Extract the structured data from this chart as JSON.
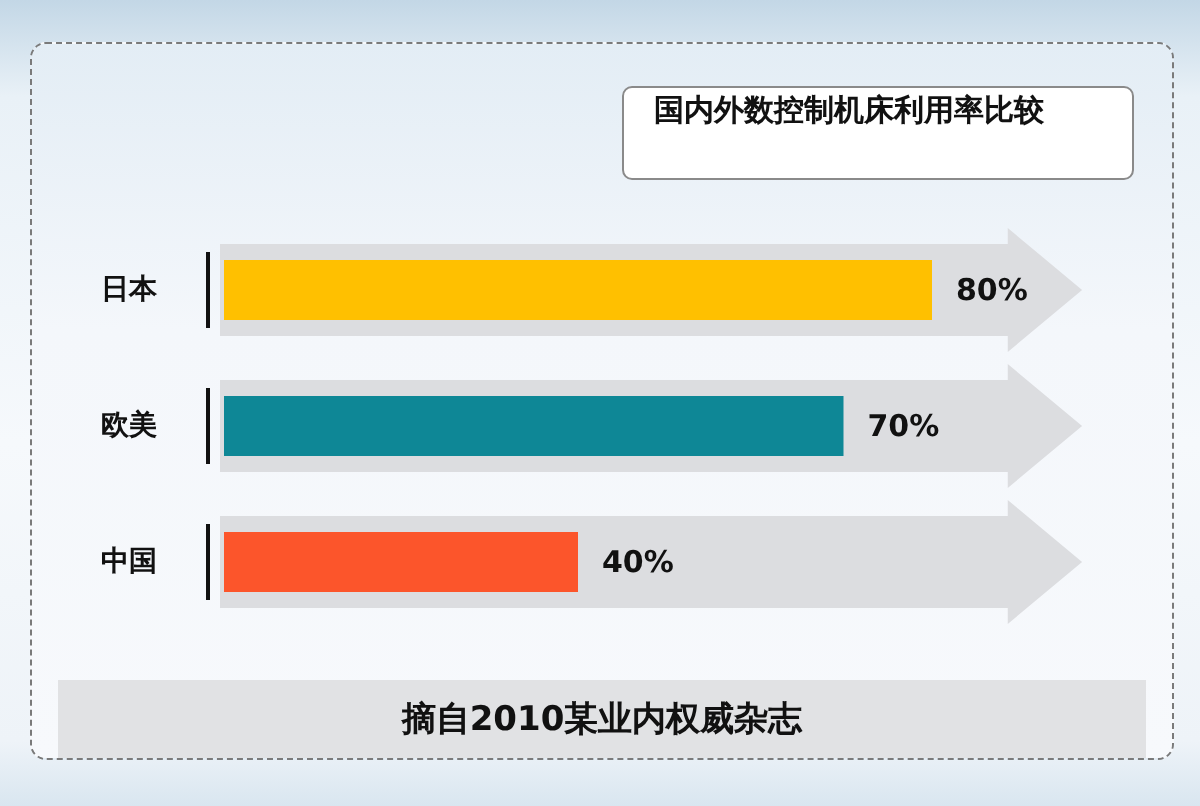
{
  "chart_data": {
    "type": "bar",
    "orientation": "horizontal",
    "title": "国内外数控制机床利用率比较",
    "categories": [
      "日本",
      "欧美",
      "中国"
    ],
    "values": [
      80,
      70,
      40
    ],
    "colors": [
      "#ffc000",
      "#0e8796",
      "#fc552b"
    ],
    "value_labels": [
      "80%",
      "70%",
      "40%"
    ],
    "tick_labels": "y",
    "annotations": [
      "摘自2010某业内权威杂志"
    ]
  }
}
